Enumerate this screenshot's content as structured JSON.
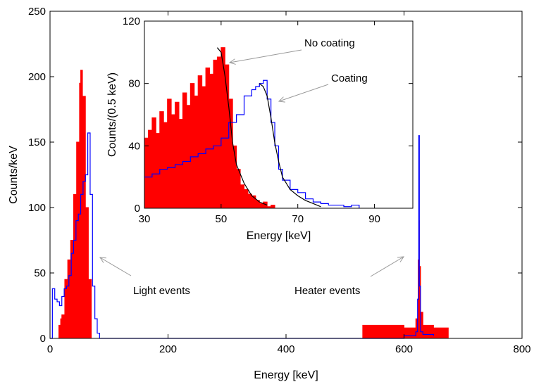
{
  "chart_data": [
    {
      "type": "histogram",
      "xlabel": "Energy [keV]",
      "ylabel": "Counts/keV",
      "xlim": [
        0,
        800
      ],
      "ylim": [
        0,
        250
      ],
      "x_ticks": [
        "0",
        "200",
        "400",
        "600",
        "800"
      ],
      "y_ticks": [
        "0",
        "50",
        "100",
        "150",
        "200",
        "250"
      ],
      "grid": false,
      "annotations": [
        "Light events",
        "Heater events"
      ],
      "series": [
        {
          "style": "filled",
          "color": "#ff0000",
          "x": [
            10,
            15,
            18,
            20,
            25,
            30,
            35,
            40,
            45,
            50,
            52,
            55,
            60,
            65,
            70,
            530,
            560,
            600,
            620,
            624,
            625,
            626,
            628,
            632,
            650,
            675
          ],
          "y": [
            0,
            10,
            15,
            18,
            45,
            60,
            75,
            110,
            150,
            195,
            205,
            185,
            100,
            45,
            0,
            10,
            10,
            8,
            15,
            60,
            90,
            55,
            20,
            10,
            8,
            0
          ]
        },
        {
          "style": "step",
          "color": "#0000ff",
          "x": [
            0,
            4,
            8,
            12,
            16,
            20,
            24,
            28,
            32,
            36,
            40,
            44,
            48,
            52,
            56,
            60,
            64,
            68,
            72,
            76,
            80,
            84,
            600,
            620,
            623,
            625,
            626,
            628,
            632,
            650
          ],
          "y": [
            0,
            38,
            30,
            28,
            25,
            32,
            38,
            40,
            48,
            65,
            75,
            90,
            95,
            110,
            120,
            125,
            157,
            110,
            40,
            15,
            4,
            0,
            2,
            5,
            30,
            155,
            40,
            5,
            3,
            2
          ]
        }
      ]
    },
    {
      "type": "histogram",
      "xlabel": "Energy [keV]",
      "ylabel": "Counts/(0.5 keV)",
      "xlim": [
        30,
        100
      ],
      "ylim": [
        0,
        120
      ],
      "x_ticks": [
        "30",
        "50",
        "70",
        "90"
      ],
      "y_ticks": [
        "0",
        "40",
        "80",
        "120"
      ],
      "grid": false,
      "annotations": [
        "No coating",
        "Coating"
      ],
      "series": [
        {
          "style": "filled",
          "color": "#ff0000",
          "x": [
            30,
            31,
            32,
            33,
            34,
            35,
            36,
            37,
            38,
            39,
            40,
            41,
            42,
            43,
            44,
            45,
            46,
            47,
            48,
            49,
            50,
            51,
            52,
            53,
            54,
            55,
            56,
            57,
            58,
            59,
            60,
            61,
            62,
            63,
            64
          ],
          "y": [
            45,
            50,
            58,
            48,
            62,
            55,
            70,
            60,
            68,
            57,
            74,
            66,
            80,
            72,
            85,
            78,
            90,
            86,
            95,
            97,
            103,
            92,
            70,
            40,
            25,
            15,
            12,
            9,
            8,
            5,
            3,
            4,
            1,
            2,
            0
          ]
        },
        {
          "style": "step",
          "color": "#0000ff",
          "x": [
            30,
            32,
            34,
            36,
            38,
            40,
            42,
            44,
            46,
            48,
            50,
            52,
            54,
            56,
            58,
            59,
            60,
            61,
            62,
            63,
            64,
            65,
            66,
            68,
            70,
            72,
            74,
            76,
            78,
            80,
            82,
            84,
            86
          ],
          "y": [
            20,
            22,
            25,
            26,
            28,
            30,
            33,
            35,
            38,
            40,
            45,
            55,
            60,
            72,
            76,
            78,
            80,
            82,
            70,
            55,
            40,
            25,
            18,
            12,
            10,
            6,
            4,
            3,
            2,
            2,
            1,
            2,
            0
          ]
        },
        {
          "style": "fit-line",
          "color": "#000000",
          "x": [
            49,
            50,
            51,
            52,
            53,
            54,
            56,
            58,
            60,
            62
          ],
          "y": [
            103,
            100,
            85,
            65,
            42,
            28,
            16,
            8,
            4,
            2
          ]
        },
        {
          "style": "fit-line",
          "color": "#000000",
          "x": [
            60,
            61,
            62,
            63,
            64,
            65,
            66,
            68,
            70,
            72,
            74,
            76
          ],
          "y": [
            80,
            78,
            72,
            58,
            42,
            30,
            20,
            12,
            8,
            5,
            3,
            1
          ]
        }
      ]
    }
  ]
}
